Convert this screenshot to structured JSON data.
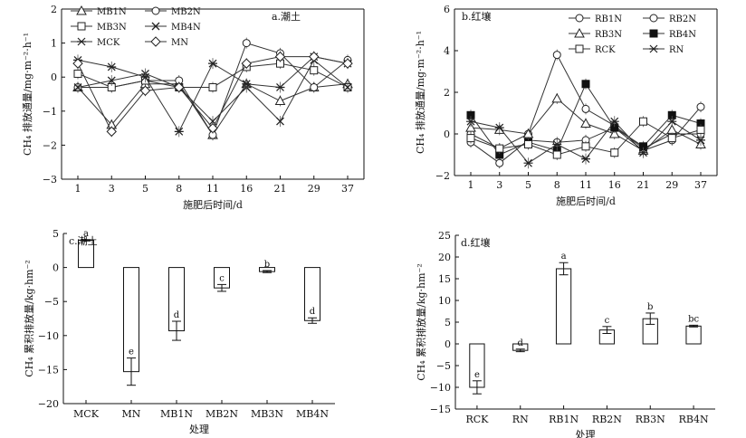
{
  "chart_data": [
    {
      "panel": "a",
      "type": "line",
      "title": "a.潮土",
      "xlabel": "施肥后时间/d",
      "ylabel": "CH₄ 排放通量/mg·m⁻²·h⁻¹",
      "categories": [
        "1",
        "3",
        "5",
        "8",
        "11",
        "16",
        "21",
        "29",
        "37"
      ],
      "ylim": [
        -3,
        2
      ],
      "yticks": [
        -3,
        -2,
        -1,
        0,
        1,
        2
      ],
      "legend": "top-left",
      "series": [
        {
          "name": "MB1N",
          "marker": "triangle",
          "values": [
            -0.3,
            -1.4,
            -0.2,
            -0.2,
            -1.7,
            -0.2,
            -0.7,
            -0.3,
            -0.2
          ]
        },
        {
          "name": "MB2N",
          "marker": "circle",
          "values": [
            -0.3,
            -0.3,
            -0.1,
            -0.1,
            -1.7,
            1.0,
            0.7,
            -0.3,
            0.5
          ]
        },
        {
          "name": "MB3N",
          "marker": "square",
          "values": [
            0.1,
            -0.3,
            -0.1,
            -0.3,
            -0.3,
            0.3,
            0.4,
            0.2,
            -0.3
          ]
        },
        {
          "name": "MB4N",
          "marker": "x",
          "values": [
            -0.3,
            -0.1,
            0.1,
            -0.3,
            -1.3,
            -0.3,
            -1.3,
            0.5,
            -0.3
          ]
        },
        {
          "name": "MCK",
          "marker": "asterisk",
          "values": [
            0.5,
            0.3,
            0.0,
            -1.6,
            0.4,
            -0.2,
            -0.3,
            0.6,
            0.4
          ]
        },
        {
          "name": "MN",
          "marker": "diamond",
          "values": [
            0.4,
            -1.6,
            -0.4,
            -0.3,
            -1.5,
            0.4,
            0.6,
            0.6,
            0.4
          ]
        }
      ]
    },
    {
      "panel": "b",
      "type": "line",
      "title": "b.红壤",
      "xlabel": "施肥后时间/d",
      "ylabel": "CH₄ 排放通量/mg·m⁻²·h⁻¹",
      "categories": [
        "1",
        "3",
        "5",
        "8",
        "11",
        "16",
        "21",
        "29",
        "37"
      ],
      "ylim": [
        -2,
        6
      ],
      "yticks": [
        -2,
        0,
        2,
        4,
        6
      ],
      "legend": "top-right",
      "series": [
        {
          "name": "RB1N",
          "marker": "circle",
          "values": [
            0.0,
            -0.7,
            0.0,
            3.8,
            1.2,
            0.4,
            -0.7,
            0.0,
            0.0
          ]
        },
        {
          "name": "RB2N",
          "marker": "circle",
          "values": [
            -0.4,
            -1.4,
            -0.3,
            -0.4,
            -0.3,
            0.3,
            -0.8,
            -0.3,
            1.3
          ]
        },
        {
          "name": "RB3N",
          "marker": "triangle",
          "values": [
            0.3,
            0.2,
            0.0,
            1.7,
            0.5,
            0.0,
            -0.8,
            0.2,
            -0.5
          ]
        },
        {
          "name": "RB4N",
          "marker": "square-filled",
          "values": [
            0.9,
            -1.0,
            -0.4,
            -0.8,
            2.4,
            0.3,
            -0.6,
            0.9,
            0.5
          ]
        },
        {
          "name": "RCK",
          "marker": "square",
          "values": [
            -0.2,
            -0.7,
            -0.5,
            -1.0,
            -0.6,
            -0.9,
            0.6,
            -0.2,
            0.2
          ]
        },
        {
          "name": "RN",
          "marker": "asterisk",
          "values": [
            0.6,
            0.3,
            -1.4,
            -0.5,
            -1.2,
            0.6,
            -0.9,
            0.6,
            -0.3
          ]
        }
      ]
    },
    {
      "panel": "c",
      "type": "bar",
      "title": "c.潮土",
      "xlabel": "处理",
      "ylabel": "CH₄ 累积排放量/kg·hm⁻²",
      "categories": [
        "MCK",
        "MN",
        "MB1N",
        "MB2N",
        "MB3N",
        "MB4N"
      ],
      "values": [
        4.0,
        -15.3,
        -9.3,
        -3.0,
        -0.6,
        -7.8
      ],
      "errors": [
        0.1,
        2.0,
        1.4,
        0.5,
        0.15,
        0.4
      ],
      "significance": [
        "a",
        "e",
        "d",
        "c",
        "b",
        "d"
      ],
      "ylim": [
        -20,
        5
      ],
      "yticks": [
        -20,
        -15,
        -10,
        -5,
        0,
        5
      ]
    },
    {
      "panel": "d",
      "type": "bar",
      "title": "d.红壤",
      "xlabel": "处理",
      "ylabel": "CH₄ 累积排放量/kg·hm⁻²",
      "categories": [
        "RCK",
        "RN",
        "RB1N",
        "RB2N",
        "RB3N",
        "RB4N"
      ],
      "values": [
        -10.0,
        -1.5,
        17.3,
        3.2,
        5.8,
        4.1
      ],
      "errors": [
        1.5,
        0.3,
        1.4,
        0.8,
        1.3,
        0.2
      ],
      "significance": [
        "e",
        "d",
        "a",
        "c",
        "b",
        "bc"
      ],
      "ylim": [
        -15,
        25
      ],
      "yticks": [
        -15,
        -10,
        -5,
        0,
        5,
        10,
        15,
        20,
        25
      ]
    }
  ]
}
